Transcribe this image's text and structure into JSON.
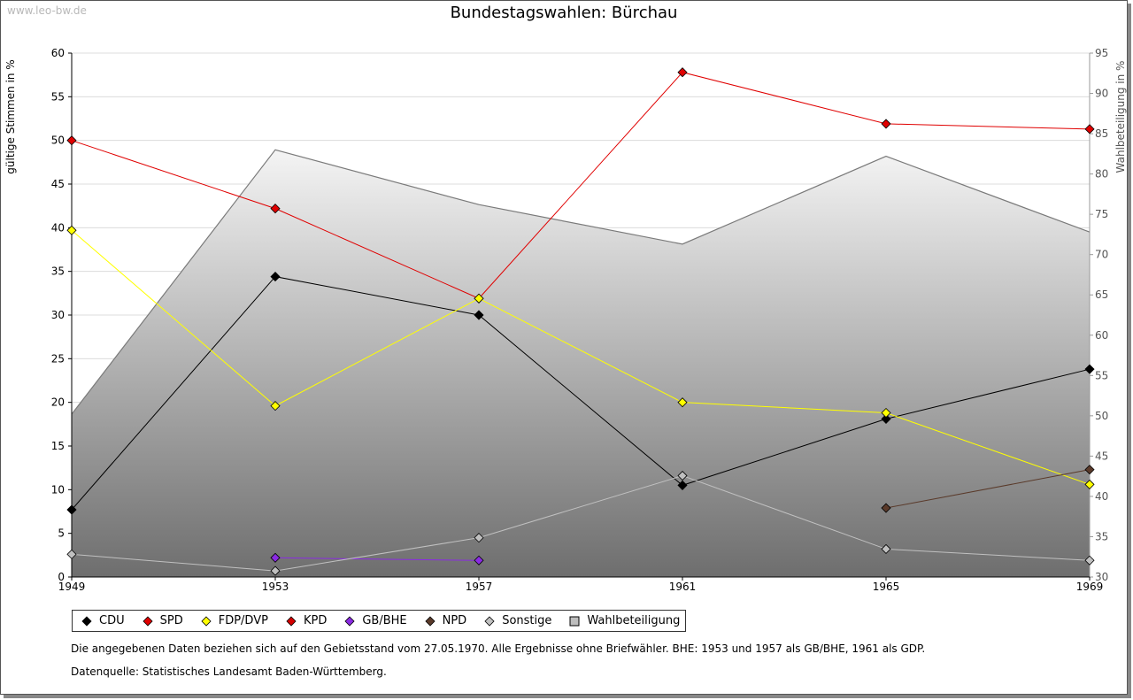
{
  "watermark": "www.leo-bw.de",
  "title": "Bundestagswahlen: Bürchau",
  "left_axis_title": "gültige Stimmen in %",
  "right_axis_title": "Wahlbeteiligung in %",
  "note": "Die angegebenen Daten beziehen sich auf den Gebietsstand vom 27.05.1970. Alle Ergebnisse ohne Briefwähler. BHE: 1953 und 1957 als GB/BHE, 1961 als GDP.",
  "source": "Datenquelle: Statistisches Landesamt Baden-Württemberg.",
  "chart_data": {
    "type": "line",
    "title": "Bundestagswahlen: Bürchau",
    "x": [
      1949,
      1953,
      1957,
      1961,
      1965,
      1969
    ],
    "xlabel": "",
    "ylabel": "gültige Stimmen in %",
    "ylim": [
      0,
      60
    ],
    "yticks": [
      0,
      5,
      10,
      15,
      20,
      25,
      30,
      35,
      40,
      45,
      50,
      55,
      60
    ],
    "y2label": "Wahlbeteiligung in %",
    "y2lim": [
      30,
      95
    ],
    "y2ticks": [
      30,
      35,
      40,
      45,
      50,
      55,
      60,
      65,
      70,
      75,
      80,
      85,
      90,
      95
    ],
    "grid": true,
    "legend_position": "bottom",
    "series": [
      {
        "name": "CDU",
        "color": "#000000",
        "values": [
          7.7,
          34.4,
          30.0,
          10.5,
          18.1,
          23.8
        ]
      },
      {
        "name": "SPD",
        "color": "#e00000",
        "values": [
          50.0,
          42.2,
          31.9,
          57.8,
          51.9,
          51.3
        ]
      },
      {
        "name": "FDP/DVP",
        "color": "#ffff00",
        "values": [
          39.7,
          19.6,
          31.9,
          20.0,
          18.8,
          10.6
        ]
      },
      {
        "name": "KPD",
        "color": "#d40000",
        "values": [
          null,
          null,
          null,
          null,
          null,
          null
        ]
      },
      {
        "name": "GB/BHE",
        "color": "#8a2be2",
        "values": [
          null,
          2.2,
          1.9,
          null,
          null,
          null
        ]
      },
      {
        "name": "NPD",
        "color": "#5a3a2a",
        "values": [
          null,
          null,
          null,
          null,
          7.9,
          12.3
        ]
      },
      {
        "name": "Sonstige",
        "color": "#c0c0c0",
        "values": [
          2.6,
          0.7,
          4.5,
          11.6,
          3.2,
          1.9
        ]
      }
    ],
    "area": {
      "name": "Wahlbeteiligung",
      "axis": "right",
      "values": [
        50.2,
        83.0,
        76.2,
        71.3,
        82.2,
        72.8
      ]
    }
  }
}
